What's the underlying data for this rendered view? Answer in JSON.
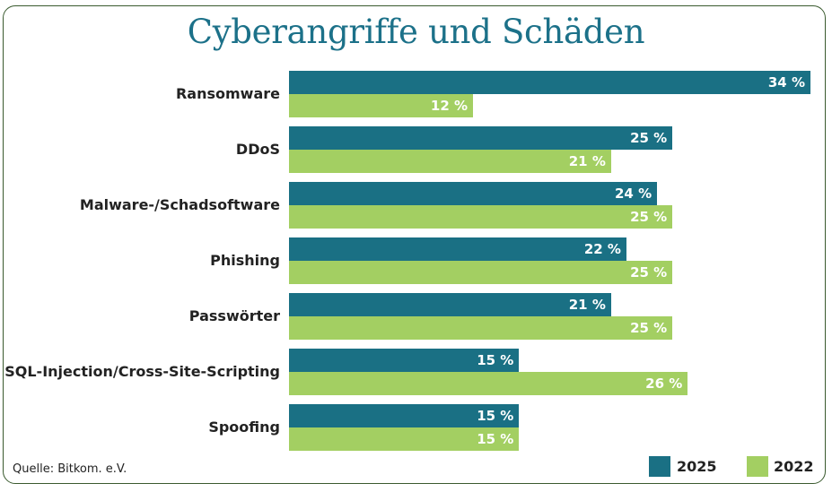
{
  "chart_data": {
    "type": "bar",
    "orientation": "horizontal",
    "title": "Cyberangriffe und Schäden",
    "xlabel": "",
    "ylabel": "",
    "xlim": [
      0,
      34
    ],
    "grid": false,
    "legend_position": "bottom-right",
    "categories": [
      "Ransomware",
      "DDoS",
      "Malware-/Schadsoftware",
      "Phishing",
      "Passwörter",
      "SQL-Injection/Cross-Site-Scripting",
      "Spoofing"
    ],
    "series": [
      {
        "name": "2025",
        "color": "#1a7084",
        "values": [
          34,
          25,
          24,
          22,
          21,
          15,
          15
        ]
      },
      {
        "name": "2022",
        "color": "#a3cf62",
        "values": [
          12,
          21,
          25,
          25,
          25,
          26,
          15
        ]
      }
    ],
    "value_suffix": " %",
    "source": "Quelle: Bitkom. e.V."
  }
}
